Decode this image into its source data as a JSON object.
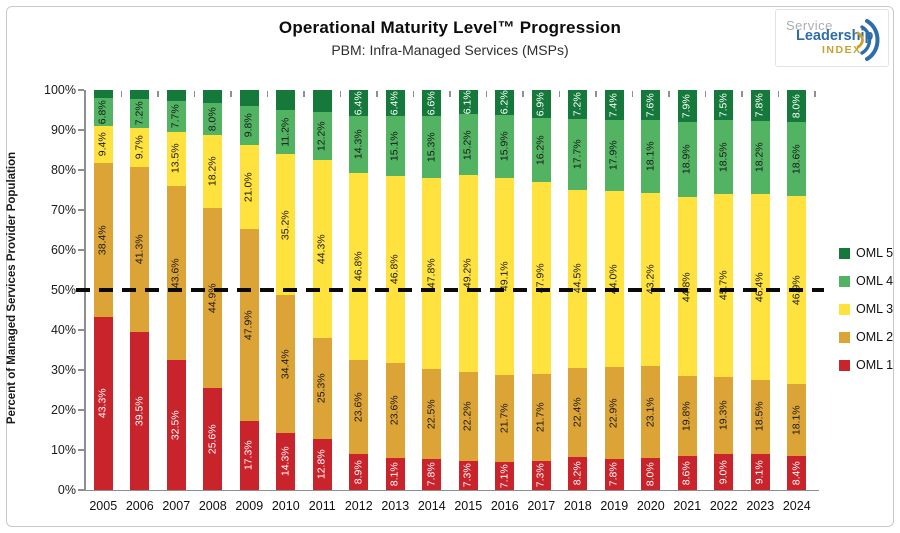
{
  "header": {
    "title": "Operational Maturity Level™ Progression",
    "subtitle": "PBM: Infra-Managed Services (MSPs)",
    "logo": {
      "word1": "Service",
      "word2": "Leadership",
      "word3": "INDEX.",
      "word2_color": "#2d6da8",
      "word3_color": "#c9a12c"
    }
  },
  "chart_data": {
    "type": "bar",
    "stacked": true,
    "title": "Operational Maturity Level™ Progression",
    "subtitle": "PBM: Infra-Managed Services (MSPs)",
    "ylabel": "Percent of Managed Services Provider Population",
    "xlabel": "",
    "ylim": [
      0,
      100
    ],
    "ytick_step": 10,
    "ytick_suffix": "%",
    "grid": true,
    "legend_position": "right",
    "legend_order": [
      "OML 5",
      "OML 4",
      "OML 3",
      "OML 2",
      "OML 1"
    ],
    "reference_line": {
      "value": 50,
      "style": "dashed",
      "color": "#0a0a0a"
    },
    "categories": [
      "2005",
      "2006",
      "2007",
      "2008",
      "2009",
      "2010",
      "2011",
      "2012",
      "2013",
      "2014",
      "2015",
      "2016",
      "2017",
      "2018",
      "2019",
      "2020",
      "2021",
      "2022",
      "2023",
      "2024"
    ],
    "series": [
      {
        "name": "OML 1",
        "color": "#c9232b",
        "label_color": "#ffffff",
        "values": [
          43.3,
          39.5,
          32.5,
          25.6,
          17.3,
          14.3,
          12.8,
          8.9,
          8.1,
          7.8,
          7.3,
          7.1,
          7.3,
          8.2,
          7.8,
          8.0,
          8.6,
          9.0,
          9.1,
          8.4
        ],
        "labels": [
          "43.3%",
          "39.5%",
          "32.5%",
          "25.6%",
          "17.3%",
          "14.3%",
          "12.8%",
          "8.9%",
          "8.1%",
          "7.8%",
          "7.3%",
          "7.1%",
          "7.3%",
          "8.2%",
          "7.8%",
          "8.0%",
          "8.6%",
          "9.0%",
          "9.1%",
          "8.4%"
        ]
      },
      {
        "name": "OML 2",
        "color": "#dca336",
        "label_color": "#1a1a1a",
        "values": [
          38.4,
          41.3,
          43.6,
          44.9,
          47.9,
          34.4,
          25.3,
          23.6,
          23.6,
          22.5,
          22.2,
          21.7,
          21.7,
          22.4,
          22.9,
          23.1,
          19.8,
          19.3,
          18.5,
          18.1
        ],
        "labels": [
          "38.4%",
          "41.3%",
          "43.6%",
          "44.9%",
          "47.9%",
          "34.4%",
          "25.3%",
          "23.6%",
          "23.6%",
          "22.5%",
          "22.2%",
          "21.7%",
          "21.7%",
          "22.4%",
          "22.9%",
          "23.1%",
          "19.8%",
          "19.3%",
          "18.5%",
          "18.1%"
        ]
      },
      {
        "name": "OML 3",
        "color": "#ffe23e",
        "label_color": "#1a1a1a",
        "values": [
          9.4,
          9.7,
          13.5,
          18.2,
          21.0,
          35.2,
          44.3,
          46.8,
          46.8,
          47.8,
          49.2,
          49.1,
          47.9,
          44.5,
          44.0,
          43.2,
          44.8,
          45.7,
          46.4,
          46.9
        ],
        "labels": [
          "9.4%",
          "9.7%",
          "13.5%",
          "18.2%",
          "21.0%",
          "35.2%",
          "44.3%",
          "46.8%",
          "46.8%",
          "47.8%",
          "49.2%",
          "49.1%",
          "47.9%",
          "44.5%",
          "44.0%",
          "43.2%",
          "44.8%",
          "45.7%",
          "46.4%",
          "46.9%"
        ]
      },
      {
        "name": "OML 4",
        "color": "#52b363",
        "label_color": "#1a1a1a",
        "values": [
          6.8,
          7.2,
          7.7,
          8.0,
          9.8,
          11.2,
          12.2,
          14.3,
          15.1,
          15.3,
          15.2,
          15.9,
          16.2,
          17.7,
          17.9,
          18.1,
          18.9,
          18.5,
          18.2,
          18.6
        ],
        "labels": [
          "6.8%",
          "7.2%",
          "7.7%",
          "8.0%",
          "9.8%",
          "11.2%",
          "12.2%",
          "14.3%",
          "15.1%",
          "15.3%",
          "15.2%",
          "15.9%",
          "16.2%",
          "17.7%",
          "17.9%",
          "18.1%",
          "18.9%",
          "18.5%",
          "18.2%",
          "18.6%"
        ]
      },
      {
        "name": "OML 5",
        "color": "#15793c",
        "label_color": "#ffffff",
        "values": [
          2.1,
          2.3,
          2.7,
          3.3,
          4.0,
          4.9,
          5.4,
          6.4,
          6.4,
          6.6,
          6.1,
          6.2,
          6.9,
          7.2,
          7.4,
          7.6,
          7.9,
          7.5,
          7.8,
          8.0
        ],
        "labels": [
          "",
          "",
          "",
          "",
          "",
          "",
          "",
          "6.4%",
          "6.4%",
          "6.6%",
          "6.1%",
          "6.2%",
          "6.9%",
          "7.2%",
          "7.4%",
          "7.6%",
          "7.9%",
          "7.5%",
          "7.8%",
          "8.0%"
        ]
      }
    ]
  }
}
